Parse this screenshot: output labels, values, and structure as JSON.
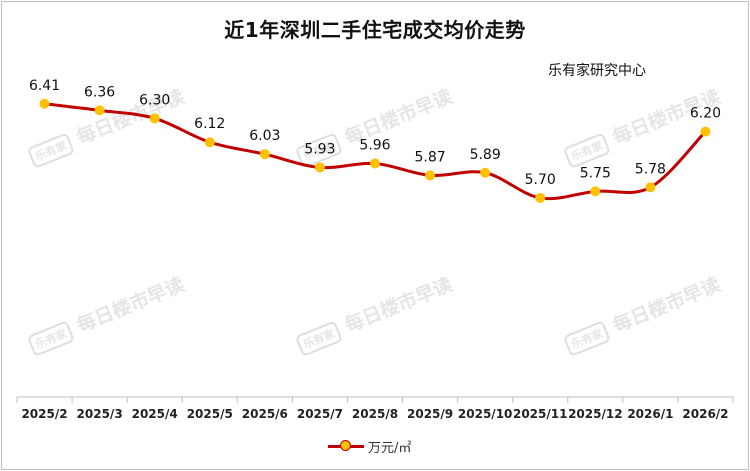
{
  "title": "近1年深圳二手住宅成交均价走势",
  "source": "乐有家研究中心",
  "watermark": {
    "seal": "乐有家",
    "text": "每日楼市早读"
  },
  "colors": {
    "line": "#c00000",
    "marker": "#ffc000",
    "text": "#111111"
  },
  "chart_data": {
    "type": "line",
    "categories": [
      "2025/2",
      "2025/3",
      "2025/4",
      "2025/5",
      "2025/6",
      "2025/7",
      "2025/8",
      "2025/9",
      "2025/10",
      "2025/11",
      "2025/12",
      "2026/1",
      "2026/2"
    ],
    "series": [
      {
        "name": "万元/㎡",
        "values": [
          6.41,
          6.36,
          6.3,
          6.12,
          6.03,
          5.93,
          5.96,
          5.87,
          5.89,
          5.7,
          5.75,
          5.78,
          6.2
        ]
      }
    ],
    "data_labels": [
      "6.41",
      "6.36",
      "6.30",
      "6.12",
      "6.03",
      "5.93",
      "5.96",
      "5.87",
      "5.89",
      "5.70",
      "5.75",
      "5.78",
      "6.20"
    ],
    "ylim": [
      4.2,
      6.8
    ],
    "grid": false,
    "legend_position": "bottom"
  }
}
